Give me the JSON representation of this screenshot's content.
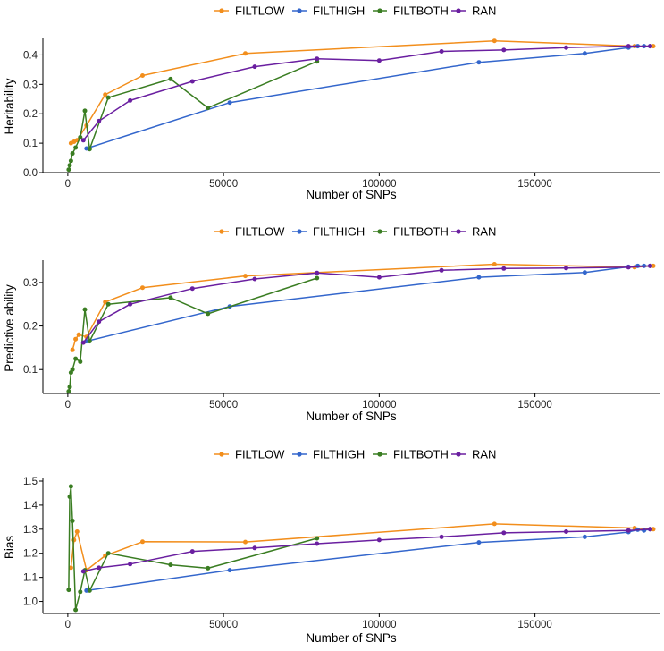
{
  "chart_data": [
    {
      "type": "line",
      "title": "",
      "xlabel": "Number of SNPs",
      "ylabel": "Heritability",
      "xlim": [
        -8000,
        190000
      ],
      "ylim": [
        0,
        0.45
      ],
      "x_ticks": [
        0,
        50000,
        100000,
        150000
      ],
      "x_tick_labels": [
        "0",
        "50000",
        "100000",
        "150000"
      ],
      "y_ticks": [
        0.0,
        0.1,
        0.2,
        0.3,
        0.4
      ],
      "y_tick_labels": [
        "0.0",
        "0.1",
        "0.2",
        "0.3",
        "0.4"
      ],
      "legend_position": "top",
      "series": [
        {
          "name": "FILTLOW",
          "color": "#F28E1C",
          "x": [
            1000,
            2000,
            3000,
            6000,
            12000,
            24000,
            57000,
            137000,
            182000,
            188000
          ],
          "y": [
            0.1,
            0.105,
            0.11,
            0.16,
            0.265,
            0.33,
            0.405,
            0.448,
            0.43,
            0.43
          ]
        },
        {
          "name": "FILTHIGH",
          "color": "#3366CC",
          "x": [
            6000,
            52000,
            132000,
            166000,
            180000,
            183000,
            185000,
            187000
          ],
          "y": [
            0.082,
            0.238,
            0.375,
            0.405,
            0.425,
            0.43,
            0.43,
            0.43
          ]
        },
        {
          "name": "FILTBOTH",
          "color": "#3A7D22",
          "x": [
            300,
            600,
            1000,
            1500,
            2500,
            4000,
            5500,
            7000,
            13000,
            33000,
            45000,
            80000
          ],
          "y": [
            0.01,
            0.025,
            0.04,
            0.065,
            0.085,
            0.12,
            0.21,
            0.08,
            0.255,
            0.318,
            0.22,
            0.378
          ]
        },
        {
          "name": "RAN",
          "color": "#6A1FA0",
          "x": [
            5000,
            10000,
            20000,
            40000,
            60000,
            80000,
            100000,
            120000,
            140000,
            160000,
            180000,
            187000
          ],
          "y": [
            0.11,
            0.175,
            0.245,
            0.31,
            0.36,
            0.387,
            0.381,
            0.412,
            0.417,
            0.425,
            0.43,
            0.43
          ]
        }
      ]
    },
    {
      "type": "line",
      "title": "",
      "xlabel": "Number of SNPs",
      "ylabel": "Predictive ability",
      "xlim": [
        -8000,
        190000
      ],
      "ylim": [
        0.045,
        0.345
      ],
      "x_ticks": [
        0,
        50000,
        100000,
        150000
      ],
      "x_tick_labels": [
        "0",
        "50000",
        "100000",
        "150000"
      ],
      "y_ticks": [
        0.1,
        0.2,
        0.3
      ],
      "y_tick_labels": [
        "0.1",
        "0.2",
        "0.3"
      ],
      "legend_position": "top",
      "series": [
        {
          "name": "FILTLOW",
          "color": "#F28E1C",
          "x": [
            1500,
            2500,
            3500,
            6000,
            12000,
            24000,
            57000,
            137000,
            182000,
            188000
          ],
          "y": [
            0.145,
            0.17,
            0.18,
            0.175,
            0.255,
            0.288,
            0.315,
            0.342,
            0.335,
            0.338
          ]
        },
        {
          "name": "FILTHIGH",
          "color": "#3366CC",
          "x": [
            6000,
            52000,
            132000,
            166000,
            180000,
            183000,
            185000,
            187000
          ],
          "y": [
            0.165,
            0.245,
            0.312,
            0.323,
            0.336,
            0.338,
            0.338,
            0.338
          ]
        },
        {
          "name": "FILTBOTH",
          "color": "#3A7D22",
          "x": [
            300,
            600,
            1000,
            1500,
            2500,
            4000,
            5500,
            7000,
            13000,
            33000,
            45000,
            80000
          ],
          "y": [
            0.05,
            0.06,
            0.093,
            0.1,
            0.125,
            0.118,
            0.238,
            0.165,
            0.25,
            0.265,
            0.228,
            0.31
          ]
        },
        {
          "name": "RAN",
          "color": "#6A1FA0",
          "x": [
            5000,
            10000,
            20000,
            40000,
            60000,
            80000,
            100000,
            120000,
            140000,
            160000,
            180000,
            187000
          ],
          "y": [
            0.162,
            0.21,
            0.25,
            0.286,
            0.308,
            0.322,
            0.312,
            0.328,
            0.332,
            0.333,
            0.335,
            0.338
          ]
        }
      ]
    },
    {
      "type": "line",
      "title": "",
      "xlabel": "Number of SNPs",
      "ylabel": "Bias",
      "xlim": [
        -8000,
        190000
      ],
      "ylim": [
        0.95,
        1.5
      ],
      "x_ticks": [
        0,
        50000,
        100000,
        150000
      ],
      "x_tick_labels": [
        "0",
        "50000",
        "100000",
        "150000"
      ],
      "y_ticks": [
        1.0,
        1.1,
        1.2,
        1.3,
        1.4,
        1.5
      ],
      "y_tick_labels": [
        "1.0",
        "1.1",
        "1.2",
        "1.3",
        "1.4",
        "1.5"
      ],
      "legend_position": "top",
      "series": [
        {
          "name": "FILTLOW",
          "color": "#F28E1C",
          "x": [
            1000,
            2000,
            3000,
            6000,
            12000,
            24000,
            57000,
            137000,
            182000,
            188000
          ],
          "y": [
            1.14,
            1.255,
            1.29,
            1.13,
            1.19,
            1.248,
            1.247,
            1.322,
            1.305,
            1.3
          ]
        },
        {
          "name": "FILTHIGH",
          "color": "#3366CC",
          "x": [
            6000,
            52000,
            132000,
            166000,
            180000,
            183000,
            185000,
            187000
          ],
          "y": [
            1.045,
            1.13,
            1.245,
            1.268,
            1.288,
            1.298,
            1.295,
            1.3
          ]
        },
        {
          "name": "FILTBOTH",
          "color": "#3A7D22",
          "x": [
            300,
            600,
            1000,
            1500,
            2500,
            4000,
            5500,
            7000,
            13000,
            33000,
            45000,
            80000
          ],
          "y": [
            1.048,
            1.435,
            1.478,
            1.335,
            0.965,
            1.04,
            1.13,
            1.045,
            1.2,
            1.152,
            1.138,
            1.262
          ]
        },
        {
          "name": "RAN",
          "color": "#6A1FA0",
          "x": [
            5000,
            10000,
            20000,
            40000,
            60000,
            80000,
            100000,
            120000,
            140000,
            160000,
            180000,
            187000
          ],
          "y": [
            1.125,
            1.14,
            1.155,
            1.208,
            1.222,
            1.24,
            1.255,
            1.268,
            1.285,
            1.29,
            1.295,
            1.3
          ]
        }
      ]
    }
  ]
}
